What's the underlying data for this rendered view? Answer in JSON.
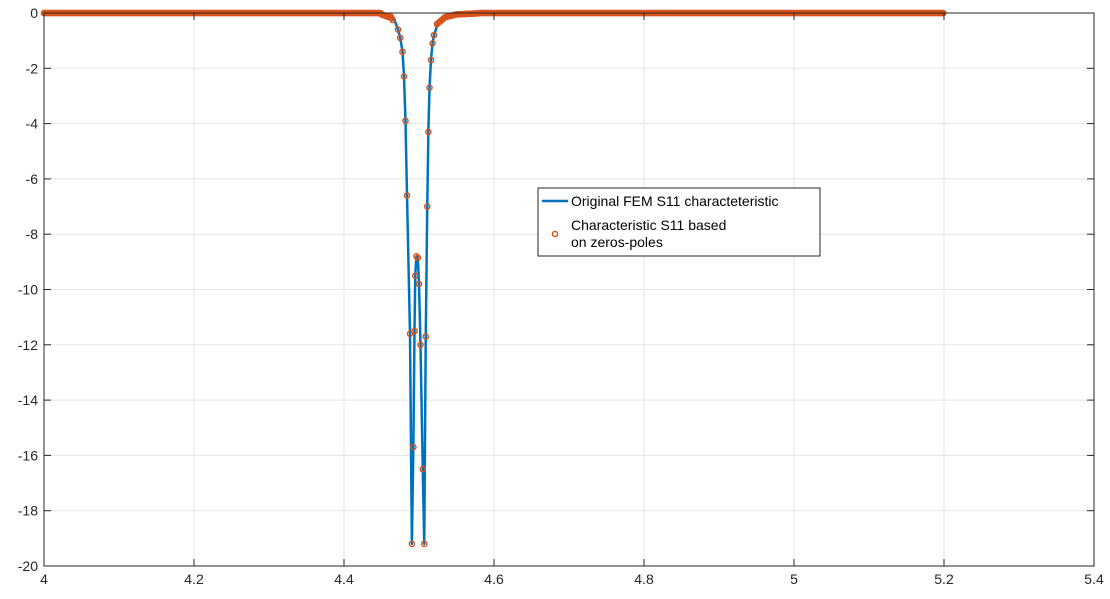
{
  "chart_data": {
    "type": "line",
    "title": "",
    "xlabel": "",
    "ylabel": "",
    "xlim": [
      4,
      5.4
    ],
    "ylim": [
      -20,
      0
    ],
    "grid": true,
    "x_ticks": [
      4,
      4.2,
      4.4,
      4.6,
      4.8,
      5,
      5.2,
      5.4
    ],
    "x_tick_labels": [
      "4",
      "4.2",
      "4.4",
      "4.6",
      "4.8",
      "5",
      "5.2",
      "5.4"
    ],
    "y_ticks": [
      0,
      -2,
      -4,
      -6,
      -8,
      -10,
      -12,
      -14,
      -16,
      -18,
      -20
    ],
    "y_tick_labels": [
      "0",
      "-2",
      "-4",
      "-6",
      "-8",
      "-10",
      "-12",
      "-14",
      "-16",
      "-18",
      "-20"
    ],
    "legend_position": "center-right",
    "colors": {
      "line": "#0072BD",
      "markers": "#D95319",
      "axes": "#262626",
      "grid": "#e5e5e5"
    },
    "series": [
      {
        "name": "Original FEM S11 characteteristic",
        "kind": "line",
        "x_range": [
          4,
          5.2
        ],
        "points": [
          [
            4.0,
            0
          ],
          [
            4.44,
            -0.01
          ],
          [
            4.455,
            -0.05
          ],
          [
            4.462,
            -0.12
          ],
          [
            4.468,
            -0.3
          ],
          [
            4.472,
            -0.6
          ],
          [
            4.475,
            -0.9
          ],
          [
            4.478,
            -1.4
          ],
          [
            4.48,
            -2.3
          ],
          [
            4.482,
            -3.9
          ],
          [
            4.484,
            -6.6
          ],
          [
            4.488,
            -11.6
          ],
          [
            4.4905,
            -19.2
          ],
          [
            4.4925,
            -15.7
          ],
          [
            4.494,
            -11.5
          ],
          [
            4.495,
            -9.5
          ],
          [
            4.4965,
            -8.8
          ],
          [
            4.4985,
            -8.85
          ],
          [
            4.5,
            -9.8
          ],
          [
            4.502,
            -12.0
          ],
          [
            4.505,
            -16.5
          ],
          [
            4.507,
            -19.2
          ],
          [
            4.509,
            -11.7
          ],
          [
            4.511,
            -7.0
          ],
          [
            4.5125,
            -4.3
          ],
          [
            4.514,
            -2.7
          ],
          [
            4.516,
            -1.7
          ],
          [
            4.518,
            -1.1
          ],
          [
            4.52,
            -0.8
          ],
          [
            4.525,
            -0.4
          ],
          [
            4.535,
            -0.15
          ],
          [
            4.55,
            -0.05
          ],
          [
            4.58,
            -0.01
          ],
          [
            5.2,
            0
          ]
        ]
      },
      {
        "name": "Characteristic S11 based on zeros-poles",
        "kind": "markers",
        "x_range": [
          4,
          5.2
        ],
        "points": [
          [
            4.472,
            -0.6
          ],
          [
            4.475,
            -0.9
          ],
          [
            4.478,
            -1.4
          ],
          [
            4.48,
            -2.3
          ],
          [
            4.482,
            -3.9
          ],
          [
            4.484,
            -6.6
          ],
          [
            4.488,
            -11.6
          ],
          [
            4.4905,
            -19.2
          ],
          [
            4.4925,
            -15.7
          ],
          [
            4.494,
            -11.5
          ],
          [
            4.495,
            -9.5
          ],
          [
            4.4965,
            -8.8
          ],
          [
            4.4985,
            -8.85
          ],
          [
            4.5,
            -9.8
          ],
          [
            4.502,
            -12.0
          ],
          [
            4.505,
            -16.5
          ],
          [
            4.507,
            -19.2
          ],
          [
            4.509,
            -11.7
          ],
          [
            4.511,
            -7.0
          ],
          [
            4.5125,
            -4.3
          ],
          [
            4.514,
            -2.7
          ],
          [
            4.516,
            -1.7
          ],
          [
            4.518,
            -1.1
          ],
          [
            4.52,
            -0.8
          ]
        ]
      }
    ],
    "legend": {
      "entries": [
        {
          "label_lines": [
            "Original FEM S11 characteteristic"
          ]
        },
        {
          "label_lines": [
            "Characteristic S11 based",
            "on zeros-poles"
          ]
        }
      ]
    }
  }
}
